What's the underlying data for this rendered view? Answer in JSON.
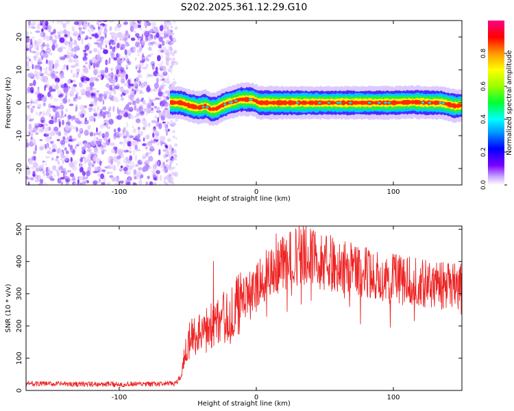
{
  "title": "S202.2025.361.12.29.G10",
  "chart_data": [
    {
      "type": "heatmap",
      "xlabel": "Height of straight line (km)",
      "ylabel": "Frequency (Hz)",
      "xlim": [
        -168,
        150
      ],
      "ylim": [
        -25,
        25
      ],
      "xticks": [
        -100,
        0,
        100
      ],
      "yticks": [
        -20,
        -10,
        0,
        10,
        20
      ],
      "noise_region_x": [
        -168,
        -63
      ],
      "signal_region_x": [
        -63,
        150
      ],
      "signal_ridge": [
        [
          -63,
          0.1
        ],
        [
          -55,
          0.0
        ],
        [
          -48,
          -1.0
        ],
        [
          -42,
          -1.5
        ],
        [
          -37,
          -1.0
        ],
        [
          -33,
          -2.0
        ],
        [
          -29,
          -1.8
        ],
        [
          -25,
          -0.8
        ],
        [
          -20,
          0.0
        ],
        [
          -15,
          0.5
        ],
        [
          -12,
          1.0
        ],
        [
          -8,
          1.0
        ],
        [
          -3,
          1.0
        ],
        [
          0,
          0.5
        ],
        [
          2,
          0.0
        ],
        [
          10,
          0.0
        ],
        [
          20,
          0.0
        ],
        [
          40,
          0.0
        ],
        [
          60,
          0.0
        ],
        [
          80,
          0.0
        ],
        [
          100,
          0.0
        ],
        [
          115,
          0.2
        ],
        [
          125,
          0.0
        ],
        [
          135,
          0.0
        ],
        [
          140,
          -0.5
        ],
        [
          145,
          -1.0
        ],
        [
          150,
          -0.8
        ]
      ],
      "colorbar": {
        "label": "Normalized spectral amplitude",
        "range": [
          0,
          1
        ],
        "ticks": [
          "0.0",
          "0.2",
          "0.4",
          "0.6",
          "0.8"
        ]
      }
    },
    {
      "type": "line",
      "xlabel": "Height of straight line (km)",
      "ylabel": "SNR (10 * v/v)",
      "xlim": [
        -168,
        150
      ],
      "ylim": [
        0,
        510
      ],
      "xticks": [
        -100,
        0,
        100
      ],
      "yticks": [
        0,
        100,
        200,
        300,
        400,
        500
      ],
      "color": "#ee2222",
      "envelope": [
        [
          -168,
          22
        ],
        [
          -120,
          20
        ],
        [
          -80,
          20
        ],
        [
          -60,
          22
        ],
        [
          -55,
          40
        ],
        [
          -52,
          120
        ],
        [
          -48,
          170
        ],
        [
          -40,
          190
        ],
        [
          -30,
          220
        ],
        [
          -20,
          240
        ],
        [
          -10,
          290
        ],
        [
          0,
          330
        ],
        [
          10,
          380
        ],
        [
          20,
          410
        ],
        [
          30,
          430
        ],
        [
          40,
          420
        ],
        [
          60,
          395
        ],
        [
          80,
          375
        ],
        [
          100,
          355
        ],
        [
          120,
          340
        ],
        [
          140,
          330
        ],
        [
          150,
          335
        ]
      ]
    }
  ]
}
